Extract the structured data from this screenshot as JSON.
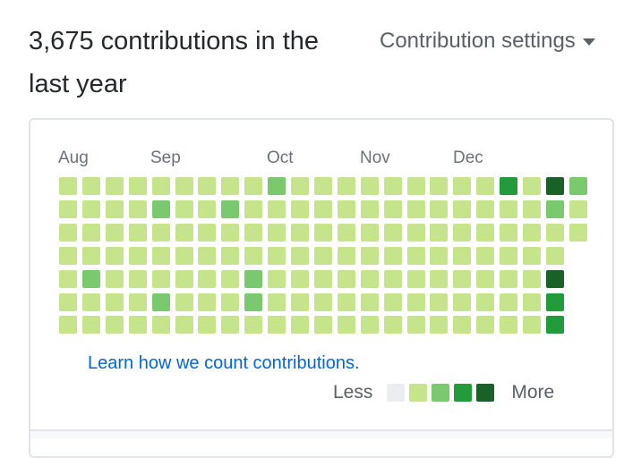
{
  "header": {
    "title": "3,675 contributions in the last year",
    "settings_label": "Contribution settings"
  },
  "calendar": {
    "months": [
      "Aug",
      "Sep",
      "Oct",
      "Nov",
      "Dec"
    ],
    "levels": [
      [
        1,
        1,
        1,
        1,
        1,
        1,
        1,
        1,
        1,
        2,
        1,
        1,
        1,
        1,
        1,
        1,
        1,
        1,
        1,
        3,
        1,
        4,
        2
      ],
      [
        1,
        1,
        1,
        1,
        2,
        1,
        1,
        2,
        1,
        1,
        1,
        1,
        1,
        1,
        1,
        1,
        1,
        1,
        1,
        1,
        1,
        2,
        1
      ],
      [
        1,
        1,
        1,
        1,
        1,
        1,
        1,
        1,
        1,
        1,
        1,
        1,
        1,
        1,
        1,
        1,
        1,
        1,
        1,
        1,
        1,
        1,
        1
      ],
      [
        1,
        1,
        1,
        1,
        1,
        1,
        1,
        1,
        1,
        1,
        1,
        1,
        1,
        1,
        1,
        1,
        1,
        1,
        1,
        1,
        1,
        1
      ],
      [
        1,
        2,
        1,
        1,
        1,
        1,
        1,
        1,
        2,
        1,
        1,
        1,
        1,
        1,
        1,
        1,
        1,
        1,
        1,
        1,
        1,
        4
      ],
      [
        1,
        1,
        1,
        1,
        2,
        1,
        1,
        1,
        2,
        1,
        1,
        1,
        1,
        1,
        1,
        1,
        1,
        1,
        1,
        1,
        1,
        3
      ],
      [
        1,
        1,
        1,
        1,
        1,
        1,
        1,
        1,
        1,
        1,
        1,
        1,
        1,
        1,
        1,
        1,
        1,
        1,
        1,
        1,
        1,
        3
      ]
    ]
  },
  "colors": {
    "level0": "#ebedf0",
    "level1": "#c6e48b",
    "level2": "#7bc96f",
    "level3": "#239a3b",
    "level4": "#196127"
  },
  "footer": {
    "learn_link": "Learn how we count contributions.",
    "legend_less": "Less",
    "legend_more": "More"
  }
}
